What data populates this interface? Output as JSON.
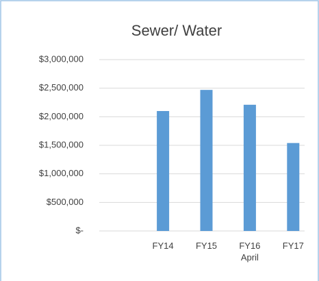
{
  "chart_data": {
    "type": "bar",
    "title": "Sewer/ Water",
    "categories": [
      null,
      "FY14",
      "FY15",
      "FY16 April",
      "FY17"
    ],
    "values": [
      null,
      2100000,
      2470000,
      2210000,
      1540000
    ],
    "color": "#5b9bd5",
    "ylim": [
      0,
      3000000
    ],
    "yticks": [
      {
        "value": 0,
        "label": "$-"
      },
      {
        "value": 500000,
        "label": "$500,000"
      },
      {
        "value": 1000000,
        "label": "$1,000,000"
      },
      {
        "value": 1500000,
        "label": "$1,500,000"
      },
      {
        "value": 2000000,
        "label": "$2,000,000"
      },
      {
        "value": 2500000,
        "label": "$2,500,000"
      },
      {
        "value": 3000000,
        "label": "$3,000,000"
      }
    ],
    "grid": true
  }
}
